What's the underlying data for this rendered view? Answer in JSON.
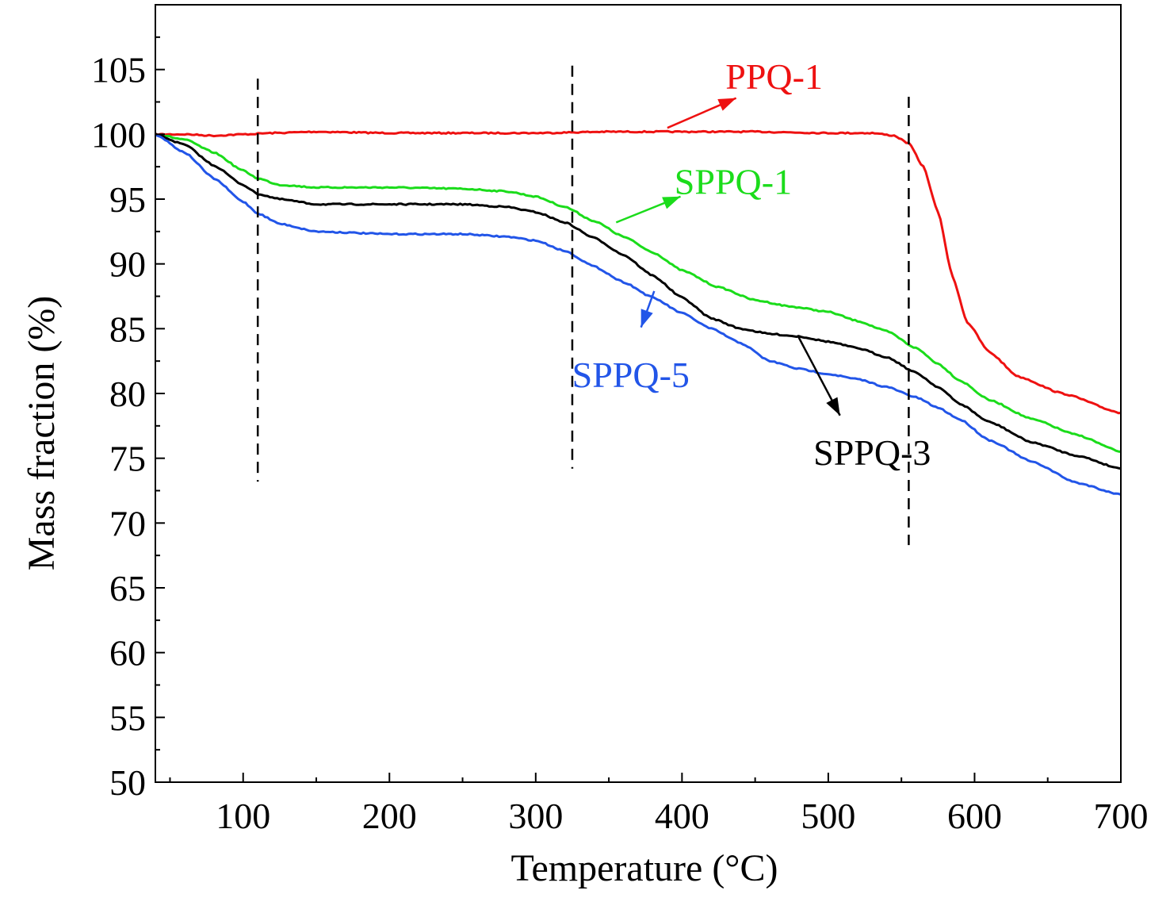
{
  "chart_data": {
    "type": "line",
    "title": "",
    "xlabel": "Temperature (°C)",
    "ylabel": "Mass fraction (%)",
    "xlim": [
      40,
      700
    ],
    "ylim": [
      50,
      110
    ],
    "xticks": [
      100,
      200,
      300,
      400,
      500,
      600,
      700
    ],
    "xtick_labels": [
      "100",
      "200",
      "300",
      "400",
      "500",
      "600",
      "700"
    ],
    "yticks": [
      50,
      55,
      60,
      65,
      70,
      75,
      80,
      85,
      90,
      95,
      100,
      105
    ],
    "ytick_labels": [
      "50",
      "55",
      "60",
      "65",
      "70",
      "75",
      "80",
      "85",
      "90",
      "95",
      "100",
      "105"
    ],
    "grid": false,
    "legend": "none",
    "series": [
      {
        "name": "PPQ-1",
        "color": "#ee1111",
        "x": [
          40,
          60,
          80,
          100,
          120,
          150,
          200,
          250,
          300,
          350,
          400,
          450,
          500,
          530,
          545,
          555,
          565,
          575,
          585,
          595,
          610,
          630,
          660,
          700
        ],
        "y": [
          100,
          100,
          99.9,
          100,
          100.1,
          100.2,
          100.1,
          100.1,
          100.1,
          100.2,
          100.2,
          100.2,
          100.1,
          100.1,
          99.9,
          99.3,
          97.5,
          94,
          89,
          85.5,
          83.2,
          81.3,
          80,
          78.5
        ]
      },
      {
        "name": "SPPQ-1",
        "color": "#1bdc1b",
        "x": [
          40,
          60,
          80,
          100,
          110,
          125,
          150,
          200,
          250,
          280,
          300,
          320,
          340,
          360,
          380,
          400,
          425,
          450,
          475,
          500,
          520,
          540,
          560,
          575,
          590,
          610,
          640,
          670,
          700
        ],
        "y": [
          100,
          99.6,
          98.6,
          97.2,
          96.6,
          96.1,
          95.9,
          95.9,
          95.8,
          95.6,
          95.2,
          94.4,
          93.3,
          92.1,
          90.9,
          89.5,
          88.2,
          87.2,
          86.7,
          86.3,
          85.6,
          84.8,
          83.5,
          82.3,
          81,
          79.5,
          78,
          76.8,
          75.5
        ]
      },
      {
        "name": "SPPQ-3",
        "color": "#000000",
        "x": [
          40,
          60,
          80,
          100,
          110,
          125,
          150,
          200,
          250,
          280,
          300,
          320,
          340,
          360,
          380,
          400,
          420,
          440,
          460,
          480,
          500,
          520,
          540,
          560,
          575,
          590,
          610,
          640,
          670,
          700
        ],
        "y": [
          100,
          99.2,
          97.6,
          96.1,
          95.4,
          95,
          94.6,
          94.6,
          94.6,
          94.4,
          94,
          93.2,
          92,
          90.7,
          89.1,
          87.4,
          85.8,
          85,
          84.6,
          84.4,
          84,
          83.5,
          82.8,
          81.6,
          80.5,
          79.2,
          77.8,
          76.2,
          75.2,
          74.2
        ]
      },
      {
        "name": "SPPQ-5",
        "color": "#2255e8",
        "x": [
          40,
          60,
          80,
          100,
          110,
          125,
          150,
          200,
          250,
          280,
          300,
          320,
          340,
          360,
          380,
          400,
          420,
          440,
          460,
          480,
          500,
          520,
          540,
          560,
          575,
          590,
          610,
          640,
          670,
          700
        ],
        "y": [
          100,
          98.6,
          96.6,
          94.8,
          93.9,
          93.1,
          92.5,
          92.3,
          92.3,
          92.1,
          91.8,
          91,
          89.8,
          88.6,
          87.4,
          86.2,
          85,
          83.9,
          82.5,
          81.9,
          81.5,
          81.1,
          80.5,
          79.7,
          78.9,
          78,
          76.4,
          74.7,
          73.1,
          72.2
        ]
      }
    ],
    "reference_lines": [
      {
        "x": 110,
        "y_from": 73.2,
        "y_to": 104.3
      },
      {
        "x": 325,
        "y_from": 74.2,
        "y_to": 105.3
      },
      {
        "x": 555,
        "y_from": 68.3,
        "y_to": 102.9
      }
    ],
    "annotations": [
      {
        "text": "PPQ-1",
        "color": "#ee1111",
        "label_x": 463,
        "label_y": 103.5,
        "from_x": 390,
        "from_y": 100.5,
        "to_x": 437,
        "to_y": 102.8
      },
      {
        "text": "SPPQ-1",
        "color": "#1bdc1b",
        "label_x": 435,
        "label_y": 95.4,
        "from_x": 355,
        "from_y": 93.2,
        "to_x": 399,
        "to_y": 95.2
      },
      {
        "text": "SPPQ-3",
        "color": "#000000",
        "label_x": 530,
        "label_y": 74.5,
        "from_x": 479,
        "from_y": 84.5,
        "to_x": 508,
        "to_y": 78.3
      },
      {
        "text": "SPPQ-5",
        "color": "#2255e8",
        "label_x": 365,
        "label_y": 80.5,
        "from_x": 381,
        "from_y": 87.9,
        "to_x": 372,
        "to_y": 85.1
      }
    ]
  }
}
